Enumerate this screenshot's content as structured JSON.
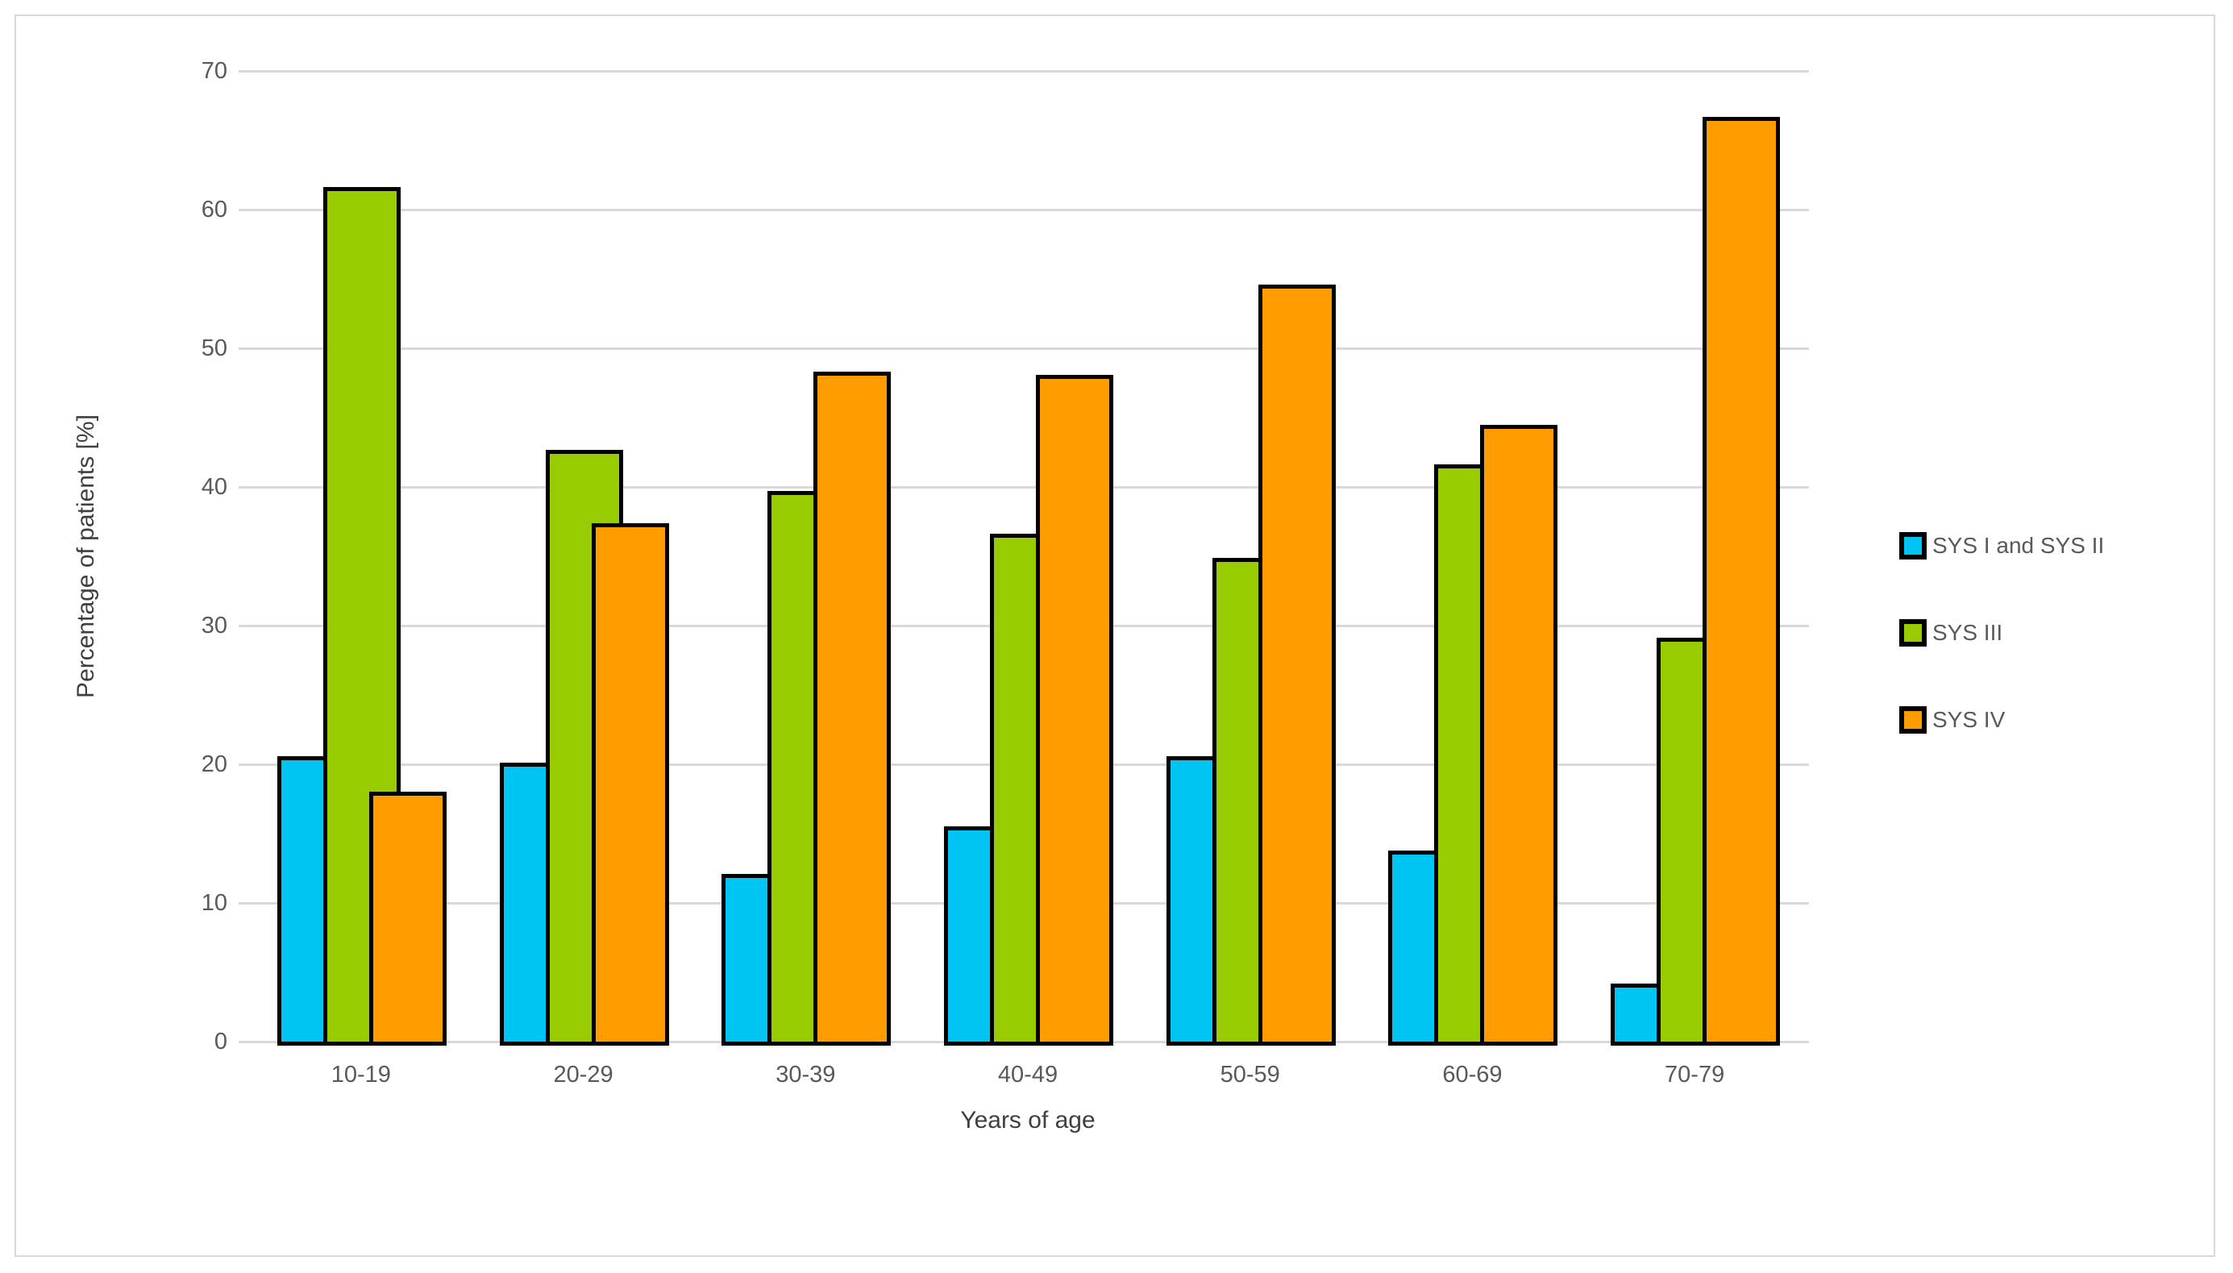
{
  "figure": {
    "background_color": "#ffffff",
    "frame_border_color": "#d9d9d9"
  },
  "chart_data": {
    "type": "bar",
    "title": "",
    "xlabel": "Years of age",
    "ylabel": "Percentage of patients [%]",
    "categories": [
      "10-19",
      "20-29",
      "30-39",
      "40-49",
      "50-59",
      "60-69",
      "70-79"
    ],
    "series": [
      {
        "name": "SYS I and SYS II",
        "color": "#00c4f4",
        "values": [
          20.6,
          20.1,
          12.1,
          15.5,
          20.6,
          13.8,
          4.2
        ]
      },
      {
        "name": "SYS III",
        "color": "#99cc00",
        "values": [
          61.6,
          42.7,
          39.7,
          36.6,
          34.9,
          41.6,
          29.1
        ]
      },
      {
        "name": "SYS IV",
        "color": "#ff9c00",
        "values": [
          18.0,
          37.4,
          48.3,
          48.1,
          54.6,
          44.5,
          66.7
        ]
      }
    ],
    "ylim": [
      0,
      70
    ],
    "yticks": [
      0,
      10,
      20,
      30,
      40,
      50,
      60,
      70
    ],
    "grid": true,
    "gridline_color": "#d9d9d9",
    "bar_border_color": "#000000",
    "tick_label_color": "#595959",
    "axis_title_color": "#3f3f3f",
    "legend_position": "right"
  }
}
